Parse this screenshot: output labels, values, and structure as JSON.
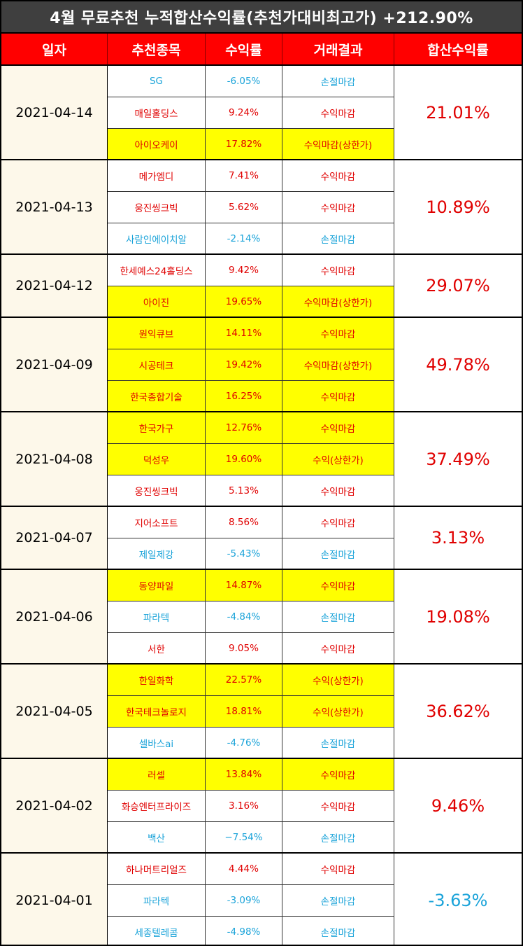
{
  "title": "4월 무료추천 누적합산수익률(추천가대비최고가) +212.90%",
  "headers": [
    "일자",
    "추천종목",
    "수익률",
    "거래결과",
    "합산수익률"
  ],
  "colors": {
    "header_bg": "#ff0000",
    "title_bg": "#3f3f3f",
    "highlight": "#ffff00",
    "positive": "#e00000",
    "negative": "#1aa3d9",
    "date_bg": "#fdf8ea"
  },
  "groups": [
    {
      "date": "2021-04-14",
      "total": "21.01%",
      "total_sign": "pos",
      "rows": [
        {
          "name": "SG",
          "rate": "-6.05%",
          "result": "손절마감",
          "sign": "neg",
          "highlight": false
        },
        {
          "name": "매일홀딩스",
          "rate": "9.24%",
          "result": "수익마감",
          "sign": "pos",
          "highlight": false
        },
        {
          "name": "아이오케이",
          "rate": "17.82%",
          "result": "수익마감(상한가)",
          "sign": "pos",
          "highlight": true
        }
      ]
    },
    {
      "date": "2021-04-13",
      "total": "10.89%",
      "total_sign": "pos",
      "rows": [
        {
          "name": "메가엠디",
          "rate": "7.41%",
          "result": "수익마감",
          "sign": "pos",
          "highlight": false
        },
        {
          "name": "웅진씽크빅",
          "rate": "5.62%",
          "result": "수익마감",
          "sign": "pos",
          "highlight": false
        },
        {
          "name": "사람인에이치알",
          "rate": "-2.14%",
          "result": "손절마감",
          "sign": "neg",
          "highlight": false
        }
      ]
    },
    {
      "date": "2021-04-12",
      "total": "29.07%",
      "total_sign": "pos",
      "rows": [
        {
          "name": "한세예스24홀딩스",
          "rate": "9.42%",
          "result": "수익마감",
          "sign": "pos",
          "highlight": false
        },
        {
          "name": "아이진",
          "rate": "19.65%",
          "result": "수익마감(상한가)",
          "sign": "pos",
          "highlight": true
        }
      ]
    },
    {
      "date": "2021-04-09",
      "total": "49.78%",
      "total_sign": "pos",
      "rows": [
        {
          "name": "원익큐브",
          "rate": "14.11%",
          "result": "수익마감",
          "sign": "pos",
          "highlight": true
        },
        {
          "name": "시공테크",
          "rate": "19.42%",
          "result": "수익마감(상한가)",
          "sign": "pos",
          "highlight": true
        },
        {
          "name": "한국종합기술",
          "rate": "16.25%",
          "result": "수익마감",
          "sign": "pos",
          "highlight": true
        }
      ]
    },
    {
      "date": "2021-04-08",
      "total": "37.49%",
      "total_sign": "pos",
      "rows": [
        {
          "name": "한국가구",
          "rate": "12.76%",
          "result": "수익마감",
          "sign": "pos",
          "highlight": true
        },
        {
          "name": "덕성우",
          "rate": "19.60%",
          "result": "수익(상한가)",
          "sign": "pos",
          "highlight": true
        },
        {
          "name": "웅진씽크빅",
          "rate": "5.13%",
          "result": "수익마감",
          "sign": "pos",
          "highlight": false
        }
      ]
    },
    {
      "date": "2021-04-07",
      "total": "3.13%",
      "total_sign": "pos",
      "rows": [
        {
          "name": "지어소프트",
          "rate": "8.56%",
          "result": "수익마감",
          "sign": "pos",
          "highlight": false
        },
        {
          "name": "제일제강",
          "rate": "-5.43%",
          "result": "손절마감",
          "sign": "neg",
          "highlight": false
        }
      ]
    },
    {
      "date": "2021-04-06",
      "total": "19.08%",
      "total_sign": "pos",
      "rows": [
        {
          "name": "동양파일",
          "rate": "14.87%",
          "result": "수익마감",
          "sign": "pos",
          "highlight": true
        },
        {
          "name": "파라텍",
          "rate": "-4.84%",
          "result": "손절마감",
          "sign": "neg",
          "highlight": false
        },
        {
          "name": "서한",
          "rate": "9.05%",
          "result": "수익마감",
          "sign": "pos",
          "highlight": false
        }
      ]
    },
    {
      "date": "2021-04-05",
      "total": "36.62%",
      "total_sign": "pos",
      "rows": [
        {
          "name": "한일화학",
          "rate": "22.57%",
          "result": "수익(상한가)",
          "sign": "pos",
          "highlight": true
        },
        {
          "name": "한국테크놀로지",
          "rate": "18.81%",
          "result": "수익(상한가)",
          "sign": "pos",
          "highlight": true
        },
        {
          "name": "셀바스ai",
          "rate": "-4.76%",
          "result": "손절마감",
          "sign": "neg",
          "highlight": false
        }
      ]
    },
    {
      "date": "2021-04-02",
      "total": "9.46%",
      "total_sign": "pos",
      "rows": [
        {
          "name": "러셀",
          "rate": "13.84%",
          "result": "수익마감",
          "sign": "pos",
          "highlight": true
        },
        {
          "name": "화승엔터프라이즈",
          "rate": "3.16%",
          "result": "수익마감",
          "sign": "pos",
          "highlight": false
        },
        {
          "name": "백산",
          "rate": "−7.54%",
          "result": "손절마감",
          "sign": "neg",
          "highlight": false
        }
      ]
    },
    {
      "date": "2021-04-01",
      "total": "-3.63%",
      "total_sign": "neg",
      "rows": [
        {
          "name": "하나머트리얼즈",
          "rate": "4.44%",
          "result": "수익마감",
          "sign": "pos",
          "highlight": false
        },
        {
          "name": "파라텍",
          "rate": "-3.09%",
          "result": "손절마감",
          "sign": "neg",
          "highlight": false
        },
        {
          "name": "세종텔레콤",
          "rate": "-4.98%",
          "result": "손절마감",
          "sign": "neg",
          "highlight": false
        }
      ]
    }
  ]
}
